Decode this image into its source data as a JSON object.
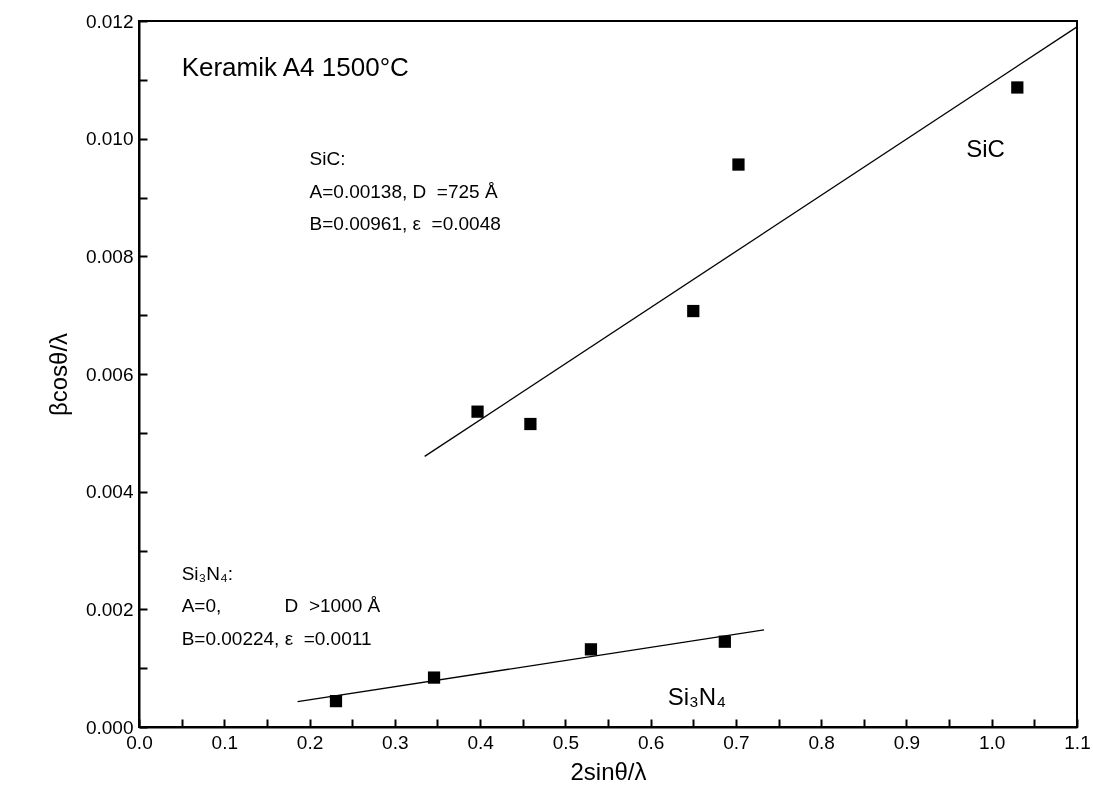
{
  "chart_data": {
    "type": "scatter",
    "xlabel": "2sinθ/λ",
    "ylabel": "βcosθ/λ",
    "xlim": [
      0,
      1.1
    ],
    "ylim": [
      0,
      0.012
    ],
    "xticks": [
      {
        "value": 0,
        "label": "0.0"
      },
      {
        "value": 0.05,
        "label": null
      },
      {
        "value": 0.1,
        "label": "0.1"
      },
      {
        "value": 0.15,
        "label": null
      },
      {
        "value": 0.2,
        "label": "0.2"
      },
      {
        "value": 0.25,
        "label": null
      },
      {
        "value": 0.3,
        "label": "0.3"
      },
      {
        "value": 0.35,
        "label": null
      },
      {
        "value": 0.4,
        "label": "0.4"
      },
      {
        "value": 0.45,
        "label": null
      },
      {
        "value": 0.5,
        "label": "0.5"
      },
      {
        "value": 0.55,
        "label": null
      },
      {
        "value": 0.6,
        "label": "0.6"
      },
      {
        "value": 0.65,
        "label": null
      },
      {
        "value": 0.7,
        "label": "0.7"
      },
      {
        "value": 0.75,
        "label": null
      },
      {
        "value": 0.8,
        "label": "0.8"
      },
      {
        "value": 0.85,
        "label": null
      },
      {
        "value": 0.9,
        "label": "0.9"
      },
      {
        "value": 0.95,
        "label": null
      },
      {
        "value": 1.0,
        "label": "1.0"
      },
      {
        "value": 1.05,
        "label": null
      },
      {
        "value": 1.1,
        "label": "1.1"
      }
    ],
    "yticks": [
      {
        "value": 0,
        "label": "0.000"
      },
      {
        "value": 0.001,
        "label": null
      },
      {
        "value": 0.002,
        "label": "0.002"
      },
      {
        "value": 0.003,
        "label": null
      },
      {
        "value": 0.004,
        "label": "0.004"
      },
      {
        "value": 0.005,
        "label": null
      },
      {
        "value": 0.006,
        "label": "0.006"
      },
      {
        "value": 0.007,
        "label": null
      },
      {
        "value": 0.008,
        "label": "0.008"
      },
      {
        "value": 0.009,
        "label": null
      },
      {
        "value": 0.01,
        "label": "0.010"
      },
      {
        "value": 0.011,
        "label": null
      },
      {
        "value": 0.012,
        "label": "0.012"
      }
    ],
    "grid": false,
    "marker": "square",
    "series": [
      {
        "color": "#000000",
        "x": [
          0.397,
          0.459,
          0.65,
          0.703,
          1.03
        ],
        "values": [
          0.00536,
          0.00515,
          0.00707,
          0.00956,
          0.01087
        ]
      },
      {
        "type": "line",
        "color": "#000000",
        "marker": "none",
        "x": [
          0.335,
          1.1
        ],
        "values": [
          0.0046,
          0.0119
        ]
      },
      {
        "color": "#000000",
        "x": [
          0.231,
          0.346,
          0.53,
          0.687
        ],
        "values": [
          0.00044,
          0.00084,
          0.00132,
          0.00145
        ]
      },
      {
        "type": "line",
        "color": "#000000",
        "marker": "none",
        "x": [
          0.186,
          0.733
        ],
        "values": [
          0.00043,
          0.00165
        ]
      }
    ],
    "annotations": [
      "Keramik A4 1500°C",
      "SiC:",
      "A=0.00138, D  =725 Å",
      "B=0.00961, ε  =0.0048",
      "Si₃N₄:",
      "A=0,            D  >1000 Å",
      "B=0.00224, ε  =0.0011",
      "SiC",
      "Si₃N₄"
    ]
  }
}
